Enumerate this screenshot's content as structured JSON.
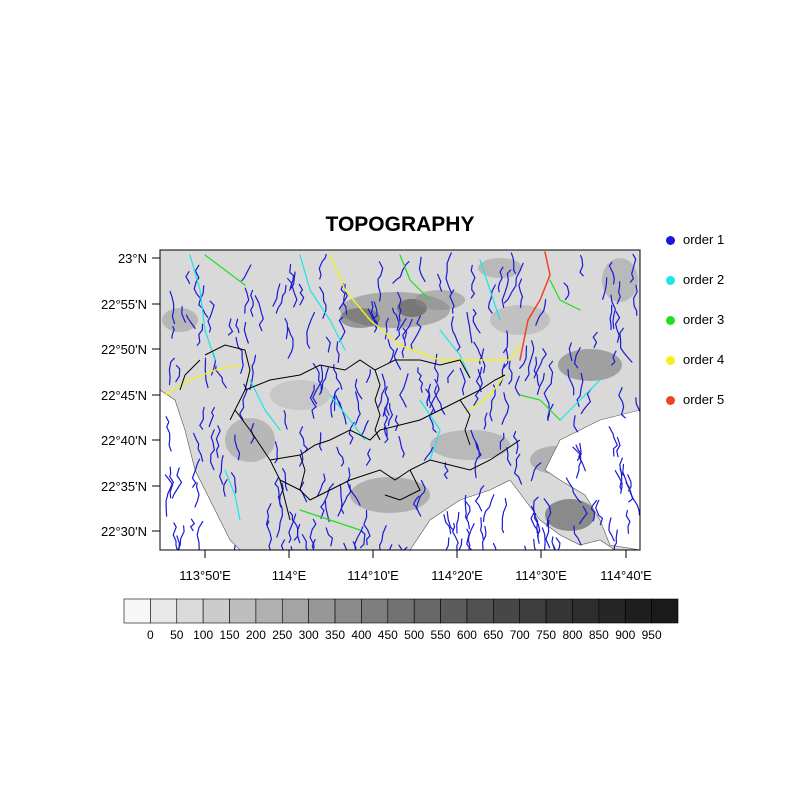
{
  "title": "TOPOGRAPHY",
  "map": {
    "lat_ticks": [
      "23°N",
      "22°55'N",
      "22°50'N",
      "22°45'N",
      "22°40'N",
      "22°35'N",
      "22°30'N"
    ],
    "lon_ticks": [
      "113°50'E",
      "114°E",
      "114°10'E",
      "114°20'E",
      "114°30'E",
      "114°40'E"
    ],
    "background_color": "#d9d9d9",
    "boundary_color": "#000000"
  },
  "legend": {
    "items": [
      {
        "label": "order 1",
        "color": "#1a1ad6"
      },
      {
        "label": "order 2",
        "color": "#19e6e6"
      },
      {
        "label": "order 3",
        "color": "#22dd22"
      },
      {
        "label": "order 4",
        "color": "#f2f21c"
      },
      {
        "label": "order 5",
        "color": "#ee4422"
      }
    ]
  },
  "colorbar": {
    "labels": [
      "0",
      "50",
      "100",
      "150",
      "200",
      "250",
      "300",
      "350",
      "400",
      "450",
      "500",
      "550",
      "600",
      "650",
      "700",
      "750",
      "800",
      "850",
      "900",
      "950"
    ],
    "colors": [
      "#f7f7f7",
      "#e8e8e8",
      "#dadada",
      "#cccccc",
      "#bebebe",
      "#b1b1b1",
      "#a4a4a4",
      "#979797",
      "#8a8a8a",
      "#7e7e7e",
      "#727272",
      "#676767",
      "#5c5c5c",
      "#515151",
      "#474747",
      "#3e3e3e",
      "#353535",
      "#2d2d2d",
      "#262626",
      "#1f1f1f",
      "#1a1a1a"
    ]
  }
}
